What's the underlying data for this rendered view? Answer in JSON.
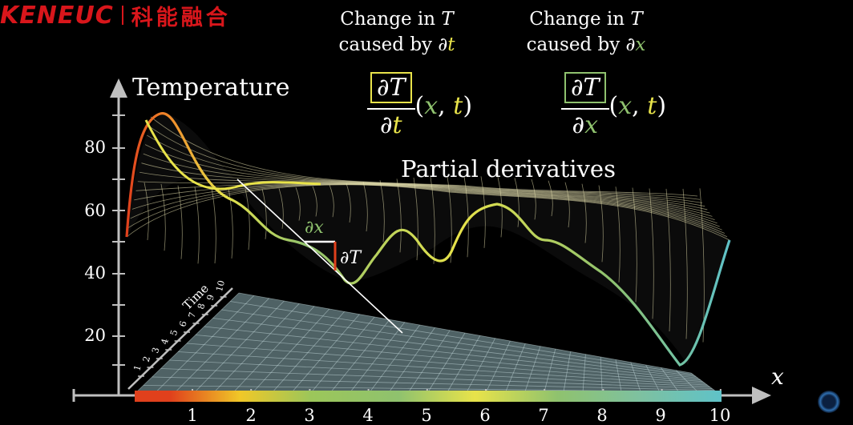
{
  "logo": {
    "brand": "KENEUC",
    "cn": "科能融合"
  },
  "captions": {
    "left": {
      "line1_pre": "Change in ",
      "line1_var": "T",
      "line2_pre": "caused by ",
      "line2_d": "∂",
      "line2_var": "t"
    },
    "right": {
      "line1_pre": "Change in ",
      "line1_var": "T",
      "line2_pre": "caused by ",
      "line2_d": "∂",
      "line2_var": "x"
    }
  },
  "formulas": {
    "left": {
      "num": "∂T",
      "den_d": "∂",
      "den_var": "t",
      "open": "(",
      "x": "x",
      "comma": ", ",
      "t": "t",
      "close": ")"
    },
    "right": {
      "num": "∂T",
      "den_d": "∂",
      "den_var": "x",
      "open": "(",
      "x": "x",
      "comma": ", ",
      "t": "t",
      "close": ")"
    }
  },
  "labels": {
    "temperature_axis": "Temperature",
    "partial_derivatives": "Partial derivatives",
    "time_axis": "Time",
    "x_axis": "x",
    "dx": "∂x",
    "dT": "∂T"
  },
  "axes": {
    "y_ticks": [
      "20",
      "40",
      "60",
      "80"
    ],
    "x_ticks": [
      "1",
      "2",
      "3",
      "4",
      "5",
      "6",
      "7",
      "8",
      "9",
      "10"
    ],
    "time_ticks": [
      "1",
      "2",
      "3",
      "4",
      "5",
      "6",
      "7",
      "8",
      "9",
      "10"
    ]
  },
  "colors": {
    "yellow": "#e8e34a",
    "green": "#8fc26e",
    "red": "#e0401c",
    "surface_line": "#f1ebb6",
    "plane": "#8aaab0"
  }
}
